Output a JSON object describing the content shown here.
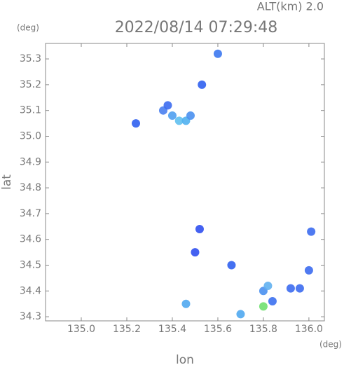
{
  "chart_data": {
    "type": "scatter",
    "title": "2022/08/14 07:29:48",
    "subtitle": "ALT(km) 2.0",
    "x_label": "lon",
    "x_unit": "(deg)",
    "y_label": "lat",
    "y_unit": "(deg)",
    "x": [
      135.6,
      135.53,
      135.24,
      135.36,
      135.38,
      135.4,
      135.43,
      135.46,
      135.48,
      135.52,
      135.5,
      135.66,
      135.46,
      135.7,
      135.8,
      135.82,
      135.8,
      135.84,
      135.92,
      135.96,
      136.0,
      136.01
    ],
    "values": [
      35.32,
      35.2,
      35.05,
      35.1,
      35.12,
      35.08,
      35.06,
      35.06,
      35.08,
      34.64,
      34.55,
      34.5,
      34.35,
      34.31,
      34.4,
      34.42,
      34.34,
      34.36,
      34.41,
      34.41,
      34.48,
      34.63
    ],
    "colors": [
      "#3c78f0",
      "#3060f0",
      "#3060f0",
      "#4a80f0",
      "#3c6cf0",
      "#50a0f0",
      "#60c0f0",
      "#50b0f0",
      "#4a90f0",
      "#3050f0",
      "#3050f0",
      "#3060f0",
      "#50a8f0",
      "#50a8f0",
      "#4a90f0",
      "#60b0f0",
      "#70e070",
      "#3c70f0",
      "#3c6cf0",
      "#3c6cf0",
      "#3c6cf0",
      "#3c6cf0"
    ],
    "xlim": [
      134.843,
      136.068
    ],
    "ylim": [
      34.284,
      35.36
    ],
    "xticks": [
      {
        "value": 135,
        "label": "135.0"
      },
      135.2,
      135.4,
      135.6,
      135.8,
      {
        "value": 136,
        "label": "136.0"
      }
    ],
    "yticks": [
      34.3,
      34.4,
      34.5,
      34.6,
      34.7,
      34.8,
      34.9,
      {
        "value": 35,
        "label": "35.0"
      },
      35.1,
      35.2,
      35.3
    ],
    "grid": false
  }
}
